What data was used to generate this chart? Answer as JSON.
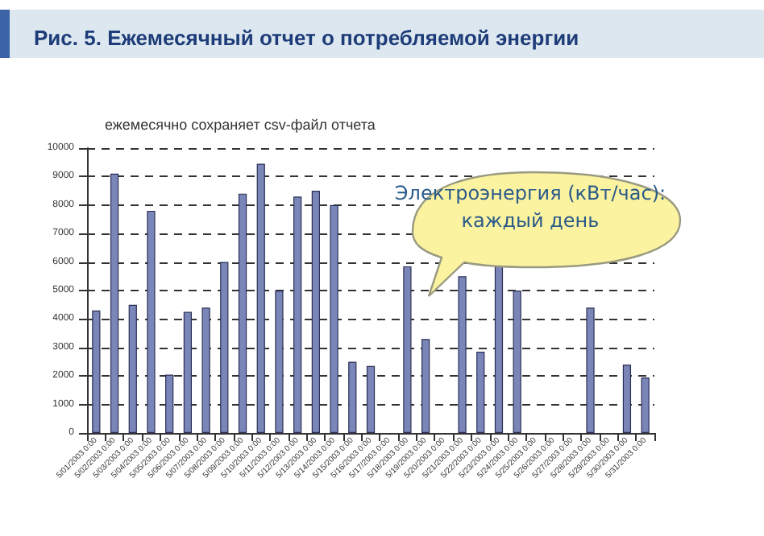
{
  "chart_data": {
    "type": "bar",
    "title": "Рис. 5. Ежемесячный отчет о потребляемой энергии",
    "subtitle": "ежемесячно сохраняет csv-файл отчета",
    "categories": [
      "5/01/2003 0:00",
      "5/02/2003 0:00",
      "5/03/2003 0:00",
      "5/04/2003 0:00",
      "5/05/2003 0:00",
      "5/06/2003 0:00",
      "5/07/2003 0:00",
      "5/08/2003 0:00",
      "5/09/2003 0:00",
      "5/10/2003 0:00",
      "5/11/2003 0:00",
      "5/12/2003 0:00",
      "5/13/2003 0:00",
      "5/14/2003 0:00",
      "5/15/2003 0:00",
      "5/16/2003 0:00",
      "5/17/2003 0:00",
      "5/18/2003 0:00",
      "5/19/2003 0:00",
      "5/20/2003 0:00",
      "5/21/2003 0:00",
      "5/22/2003 0:00",
      "5/23/2003 0:00",
      "5/24/2003 0:00",
      "5/25/2003 0:00",
      "5/26/2003 0:00",
      "5/27/2003 0:00",
      "5/28/2003 0:00",
      "5/29/2003 0:00",
      "5/30/2003 0:00",
      "5/31/2003 0:00"
    ],
    "values": [
      4300,
      9100,
      4500,
      7800,
      2050,
      4250,
      4400,
      6000,
      8400,
      9450,
      5000,
      8300,
      8500,
      8000,
      2500,
      2350,
      null,
      5850,
      3300,
      null,
      5500,
      2850,
      5850,
      5000,
      null,
      null,
      null,
      4400,
      null,
      2400,
      1950
    ],
    "color": "#7b86b8",
    "ylim": [
      0,
      10000
    ],
    "yticks": [
      0,
      1000,
      2000,
      3000,
      4000,
      5000,
      6000,
      7000,
      8000,
      9000,
      10000
    ],
    "grid": "y",
    "annotations": [
      "Электроэнергия (кВт/час):\nкаждый день"
    ]
  }
}
